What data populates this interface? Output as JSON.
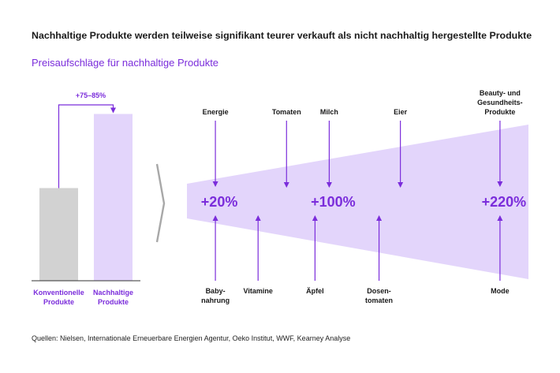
{
  "title": "Nachhaltige Produkte werden teilweise signifikant teurer verkauft als nicht nachhaltig hergestellte Produkte",
  "subtitle": "Preisaufschläge für nachhaltige Produkte",
  "source": "Quellen: Nielsen, Internationale Erneuerbare Energien Agentur, Oeko Institut, WWF, Kearney Analyse",
  "colors": {
    "accent": "#7b2ddb",
    "lavender": "#e3d5fb",
    "gray": "#d2d2d2",
    "chevron": "#a8a8a8"
  },
  "chart_data": [
    {
      "type": "bar",
      "categories": [
        "Konventionelle Produkte",
        "Nachhaltige Produkte"
      ],
      "category_lines": [
        [
          "Konventionelle",
          "Produkte"
        ],
        [
          "Nachhaltige",
          "Produkte"
        ]
      ],
      "values": [
        100,
        180
      ],
      "ylim": [
        0,
        200
      ],
      "annotation": "+75–85%"
    },
    {
      "type": "area",
      "description_free": true,
      "range_labels": [
        "+20%",
        "+100%",
        "+220%"
      ],
      "range_values": [
        20,
        100,
        220
      ],
      "xlim": [
        0,
        240
      ],
      "top_products": [
        {
          "lines": [
            "Energie"
          ],
          "value": 20
        },
        {
          "lines": [
            "Tomaten"
          ],
          "value": 70
        },
        {
          "lines": [
            "Milch"
          ],
          "value": 100
        },
        {
          "lines": [
            "Eier"
          ],
          "value": 150
        },
        {
          "lines": [
            "Beauty- und",
            "Gesundheits-",
            "Produkte"
          ],
          "value": 220
        }
      ],
      "bottom_products": [
        {
          "lines": [
            "Baby-",
            "nahrung"
          ],
          "value": 20
        },
        {
          "lines": [
            "Vitamine"
          ],
          "value": 50
        },
        {
          "lines": [
            "Äpfel"
          ],
          "value": 90
        },
        {
          "lines": [
            "Dosen-",
            "tomaten"
          ],
          "value": 135
        },
        {
          "lines": [
            "Mode"
          ],
          "value": 220
        }
      ]
    }
  ]
}
